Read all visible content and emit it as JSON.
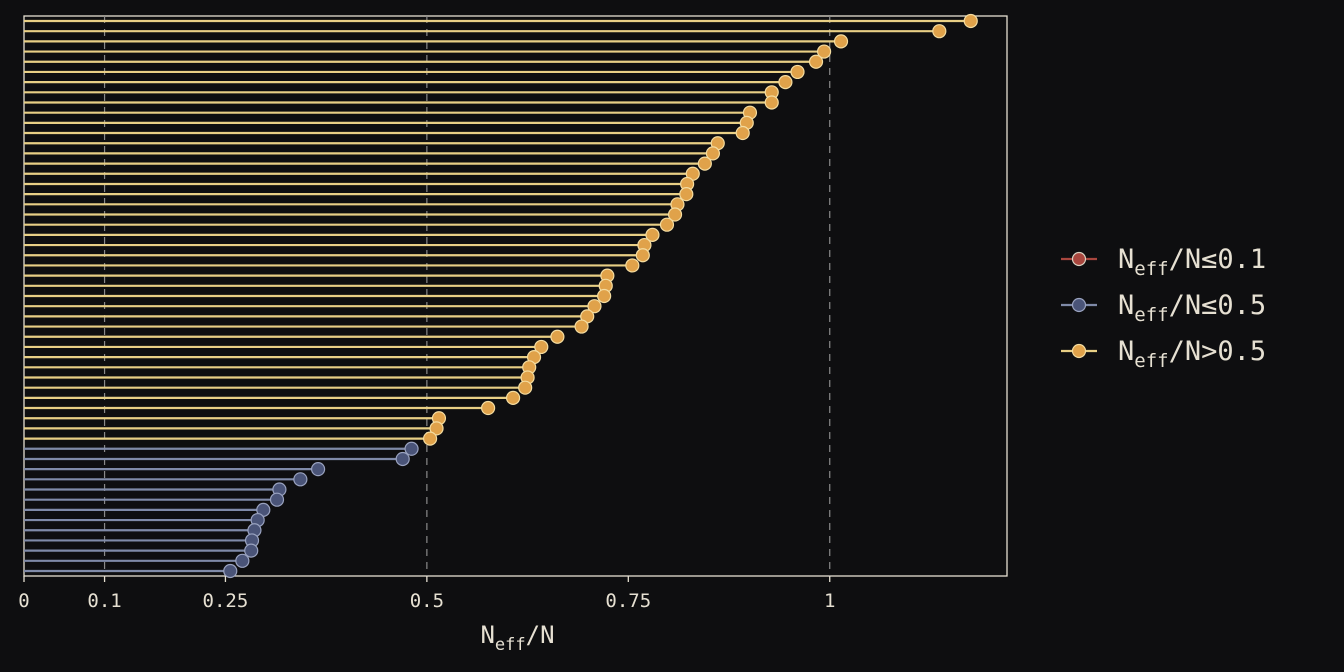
{
  "chart_data": {
    "type": "lollipop",
    "orientation": "horizontal",
    "xlabel": "N_eff/N",
    "xlim": [
      0,
      1.22
    ],
    "xticks": [
      0,
      0.1,
      0.25,
      0.5,
      0.75,
      1
    ],
    "xtick_labels": [
      "0",
      "0.1",
      "0.25",
      "0.5",
      "0.75",
      "1"
    ],
    "reference_lines": [
      0.1,
      0.5,
      1
    ],
    "sorted": "descending from top",
    "colors": {
      "background": "#0e0e10",
      "frame": "#e6e0d2",
      "reference_line": "#8a8a8a",
      "le_0_1": "#a8463e",
      "le_0_5": "#7f8aa8",
      "le_0_5_marker": "#4a5478",
      "gt_0_5": "#e8cf85",
      "gt_0_5_marker": "#e0a24a"
    },
    "legend": {
      "position": "right",
      "entries": [
        {
          "key": "le_0_1",
          "main": "N",
          "sub": "eff",
          "rest": "/N≤0.1"
        },
        {
          "key": "le_0_5",
          "main": "N",
          "sub": "eff",
          "rest": "/N≤0.5"
        },
        {
          "key": "gt_0_5",
          "main": "N",
          "sub": "eff",
          "rest": "/N>0.5"
        }
      ]
    },
    "values": [
      1.175,
      1.136,
      1.014,
      0.993,
      0.983,
      0.96,
      0.945,
      0.928,
      0.928,
      0.901,
      0.897,
      0.892,
      0.861,
      0.855,
      0.845,
      0.83,
      0.823,
      0.822,
      0.811,
      0.808,
      0.798,
      0.78,
      0.77,
      0.768,
      0.755,
      0.724,
      0.722,
      0.72,
      0.708,
      0.699,
      0.692,
      0.662,
      0.642,
      0.633,
      0.627,
      0.625,
      0.622,
      0.607,
      0.576,
      0.515,
      0.512,
      0.504,
      0.481,
      0.47,
      0.365,
      0.343,
      0.317,
      0.314,
      0.297,
      0.29,
      0.286,
      0.283,
      0.282,
      0.271,
      0.256
    ]
  }
}
